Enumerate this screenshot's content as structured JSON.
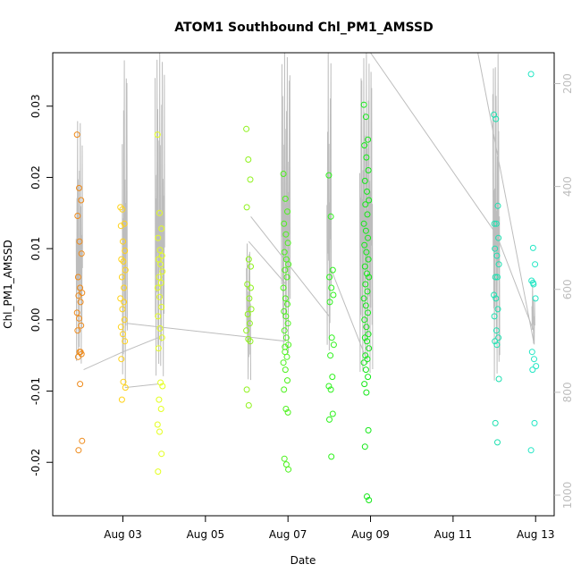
{
  "chart_data": {
    "type": "scatter",
    "title": "ATOM1 Southbound Chl_PM1_AMSSD",
    "xlabel": "Date",
    "ylabel": "Chl_PM1_AMSSD",
    "x_tick_labels": [
      "Aug 03",
      "Aug 05",
      "Aug 07",
      "Aug 09",
      "Aug 11",
      "Aug 13"
    ],
    "x_tick_values": [
      3,
      5,
      7,
      9,
      11,
      13
    ],
    "xlim": [
      1.3,
      13.45
    ],
    "ylim": [
      -0.0275,
      0.0375
    ],
    "y_ticks": [
      -0.02,
      -0.01,
      0.0,
      0.01,
      0.02,
      0.03
    ],
    "y_tick_labels": [
      "-0.02",
      "-0.01",
      "0.00",
      "0.01",
      "0.02",
      "0.03"
    ],
    "y2_ticks": [
      200,
      400,
      600,
      800,
      1000
    ],
    "y2_tick_labels": [
      "200",
      "400",
      "600",
      "800",
      "1000"
    ],
    "y2lim": [
      1040,
      140
    ],
    "y2_color": "#bdbdbd",
    "grid": false,
    "series": [
      {
        "color": "#ee8a1a",
        "x": [
          1.95,
          1.95,
          1.95,
          1.95,
          1.95,
          1.95,
          1.95,
          1.95,
          1.95,
          1.95,
          1.95,
          1.95,
          1.95,
          1.95,
          1.95,
          1.95,
          1.95,
          1.95,
          1.95,
          1.95,
          1.95,
          1.95
        ],
        "y": [
          0.026,
          0.0185,
          0.0168,
          0.0146,
          0.011,
          0.0093,
          0.006,
          0.0045,
          0.0038,
          0.0034,
          0.0025,
          0.001,
          0.0002,
          -0.0008,
          -0.0015,
          -0.0045,
          -0.0048,
          -0.0052,
          -0.009,
          -0.017,
          -0.0183,
          -0.0045
        ]
      },
      {
        "color": "#ffd21a",
        "x": [
          3.0,
          3.0,
          3.0,
          3.0,
          3.0,
          3.0,
          3.0,
          3.0,
          3.0,
          3.0,
          3.0,
          3.0,
          3.0,
          3.0,
          3.0,
          3.0,
          3.0,
          3.0,
          3.0,
          3.0,
          3.0,
          3.0
        ],
        "y": [
          0.0158,
          0.0155,
          0.0135,
          0.0132,
          0.011,
          0.0097,
          0.0085,
          0.0082,
          0.007,
          0.006,
          0.0045,
          0.003,
          0.0015,
          0.0,
          -0.001,
          -0.002,
          -0.003,
          -0.0055,
          -0.0087,
          -0.0095,
          -0.0112,
          0.0025
        ]
      },
      {
        "color": "#e4ff1f",
        "x": [
          3.9,
          3.9,
          3.9,
          3.9,
          3.9,
          3.9,
          3.9,
          3.9,
          3.9,
          3.9,
          3.9,
          3.9,
          3.9,
          3.9,
          3.9,
          3.9,
          3.9,
          3.9,
          3.9,
          3.9,
          3.9,
          3.9,
          3.9,
          3.9,
          3.9,
          3.9
        ],
        "y": [
          0.026,
          0.015,
          0.0128,
          0.0115,
          0.0098,
          0.009,
          0.0085,
          0.0078,
          0.0068,
          0.006,
          0.0052,
          0.0045,
          0.0032,
          0.0018,
          0.0005,
          -0.0012,
          -0.0025,
          -0.004,
          -0.0088,
          -0.0093,
          -0.0112,
          -0.0125,
          -0.0147,
          -0.0157,
          -0.0188,
          -0.0213
        ]
      },
      {
        "color": "#8ff21c",
        "x": [
          6.05,
          6.05,
          6.05,
          6.05,
          6.05,
          6.05,
          6.05,
          6.05,
          6.05,
          6.05,
          6.05,
          6.05,
          6.05,
          6.05,
          6.05,
          6.05,
          6.05
        ],
        "y": [
          0.0268,
          0.0225,
          0.0197,
          0.0158,
          0.0085,
          0.0075,
          0.005,
          0.003,
          0.0015,
          0.0008,
          -0.0005,
          -0.0015,
          -0.0027,
          -0.003,
          -0.0098,
          -0.012,
          0.0045
        ]
      },
      {
        "color": "#4cf21c",
        "x": [
          6.95,
          6.95,
          6.95,
          6.95,
          6.95,
          6.95,
          6.95,
          6.95,
          6.95,
          6.95,
          6.95,
          6.95,
          6.95,
          6.95,
          6.95,
          6.95,
          6.95,
          6.95,
          6.95,
          6.95,
          6.95,
          6.95,
          6.95,
          6.95,
          6.95,
          6.95,
          6.95,
          6.95,
          6.95,
          6.95,
          6.95,
          6.95
        ],
        "y": [
          0.0205,
          0.017,
          0.0152,
          0.0135,
          0.012,
          0.0108,
          0.0095,
          0.0085,
          0.0078,
          0.007,
          0.006,
          0.0045,
          0.003,
          0.0022,
          0.0012,
          0.0005,
          -0.0005,
          -0.0015,
          -0.0025,
          -0.0035,
          -0.0045,
          -0.0052,
          -0.006,
          -0.007,
          -0.0085,
          -0.0098,
          -0.0125,
          -0.013,
          -0.0195,
          -0.0203,
          -0.021,
          -0.0038
        ]
      },
      {
        "color": "#2df21c",
        "x": [
          8.05,
          8.05,
          8.05,
          8.05,
          8.05,
          8.05,
          8.05,
          8.05,
          8.05,
          8.05,
          8.05,
          8.05,
          8.05,
          8.05,
          8.05,
          8.05
        ],
        "y": [
          0.0203,
          0.0145,
          0.007,
          0.006,
          0.0045,
          0.0035,
          0.0025,
          -0.0025,
          -0.0035,
          -0.005,
          -0.008,
          -0.0093,
          -0.0098,
          -0.0132,
          -0.014,
          -0.0192
        ]
      },
      {
        "color": "#14e818",
        "x": [
          8.9,
          8.9,
          8.9,
          8.9,
          8.9,
          8.9,
          8.9,
          8.9,
          8.9,
          8.9,
          8.9,
          8.9,
          8.9,
          8.9,
          8.9,
          8.9,
          8.9,
          8.9,
          8.9,
          8.9,
          8.9,
          8.9,
          8.9,
          8.9,
          8.9,
          8.9,
          8.9,
          8.9,
          8.9,
          8.9,
          8.9,
          8.9,
          8.9,
          8.9,
          8.9,
          8.9,
          8.9,
          8.9,
          8.9,
          8.9,
          8.9,
          8.9
        ],
        "y": [
          0.0302,
          0.0285,
          0.0253,
          0.0245,
          0.0228,
          0.021,
          0.0195,
          0.018,
          0.0168,
          0.0162,
          0.0148,
          0.0135,
          0.0125,
          0.0115,
          0.0105,
          0.0095,
          0.0085,
          0.0075,
          0.0065,
          0.006,
          0.005,
          0.004,
          0.003,
          0.002,
          0.001,
          0.0,
          -0.001,
          -0.002,
          -0.0025,
          -0.003,
          -0.004,
          -0.005,
          -0.0055,
          -0.006,
          -0.007,
          -0.008,
          -0.009,
          -0.0102,
          -0.0155,
          -0.0178,
          -0.0248,
          -0.0253
        ]
      },
      {
        "color": "#1ee0b0",
        "x": [
          12.05,
          12.05,
          12.05,
          12.05,
          12.05,
          12.05,
          12.05,
          12.05,
          12.05,
          12.05,
          12.05,
          12.05,
          12.05,
          12.05,
          12.05,
          12.05,
          12.05,
          12.05,
          12.05,
          12.05,
          12.05,
          12.05
        ],
        "y": [
          0.0288,
          0.0282,
          0.016,
          0.0135,
          0.0135,
          0.0115,
          0.01,
          0.009,
          0.0078,
          0.006,
          0.006,
          0.0035,
          0.003,
          0.0015,
          0.0005,
          -0.0015,
          -0.0025,
          -0.003,
          -0.0035,
          -0.0083,
          -0.0145,
          -0.0172
        ]
      },
      {
        "color": "#22e6c4",
        "x": [
          12.95,
          12.95,
          12.95,
          12.95,
          12.95,
          12.95,
          12.95,
          12.95,
          12.95,
          12.95,
          12.95,
          12.95,
          12.95
        ],
        "y": [
          0.0345,
          0.0101,
          0.0078,
          0.0055,
          0.005,
          0.003,
          -0.0045,
          -0.0055,
          -0.0065,
          -0.007,
          -0.0145,
          -0.0183,
          0.0052
        ]
      }
    ]
  }
}
